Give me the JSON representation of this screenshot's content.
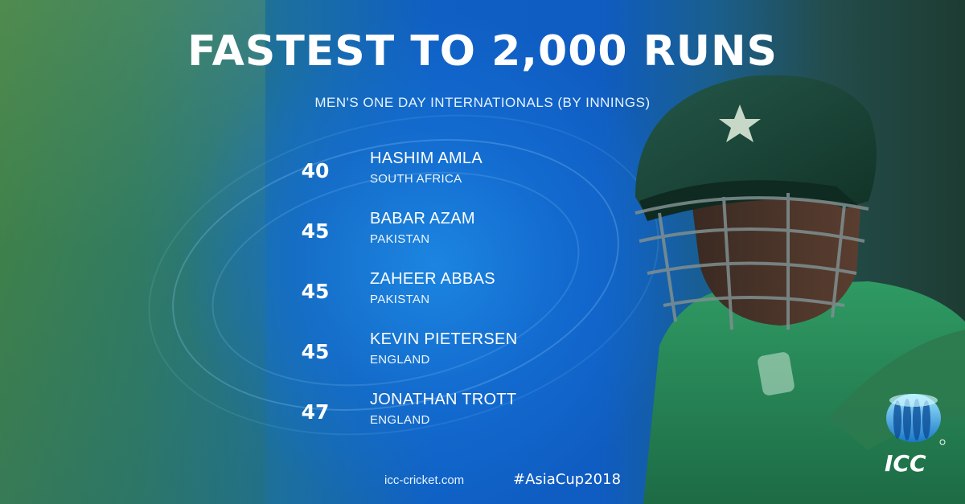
{
  "title": "FASTEST TO 2,000 RUNS",
  "subtitle": "MEN'S ONE DAY INTERNATIONALS (BY INNINGS)",
  "players": [
    {
      "innings": "40",
      "name": "HASHIM AMLA",
      "country": "SOUTH AFRICA"
    },
    {
      "innings": "45",
      "name": "BABAR AZAM",
      "country": "PAKISTAN"
    },
    {
      "innings": "45",
      "name": "ZAHEER ABBAS",
      "country": "PAKISTAN"
    },
    {
      "innings": "45",
      "name": "KEVIN PIETERSEN",
      "country": "ENGLAND"
    },
    {
      "innings": "47",
      "name": "JONATHAN TROTT",
      "country": "ENGLAND"
    }
  ],
  "footer": {
    "website": "icc-cricket.com",
    "hashtag": "#AsiaCup2018"
  },
  "logo": {
    "text": "ICC",
    "icon": "icc-logo-icon"
  },
  "colors": {
    "accent_blue": "#0f5cc2",
    "helmet_green": "#1b4a3c",
    "shirt_green": "#2a8a5a"
  }
}
